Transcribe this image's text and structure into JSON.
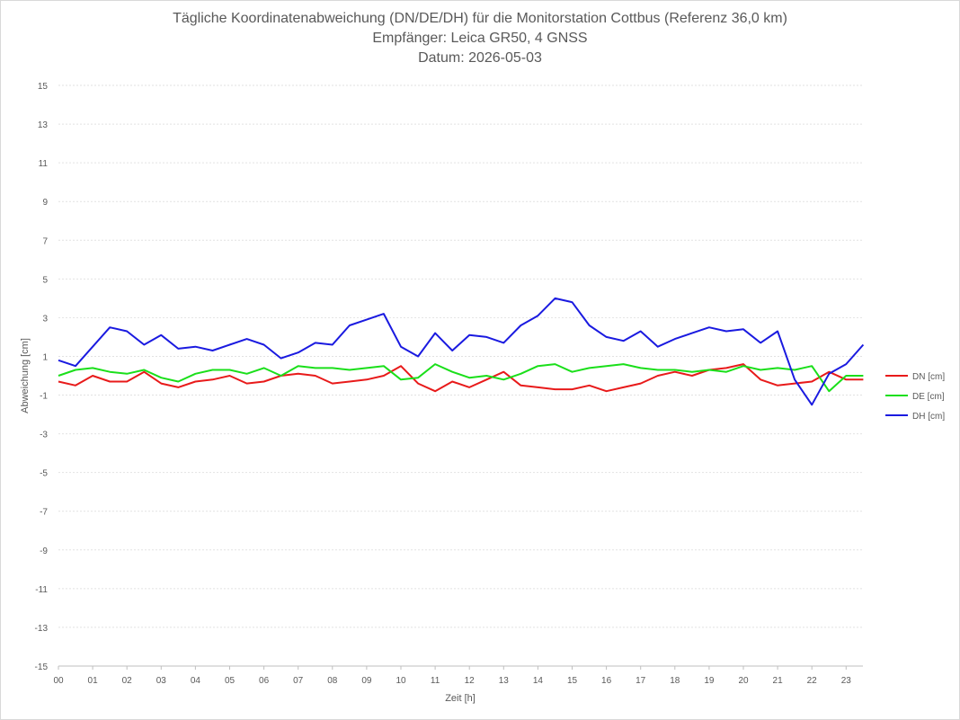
{
  "chart_data": {
    "type": "line",
    "title": "Tägliche Koordinatenabweichung (DN/DE/DH) für die Monitorstation Cottbus (Referenz 36,0 km)",
    "subtitle": "Empfänger: Leica GR50, 4 GNSS",
    "date_line": "Datum: 2026-05-03",
    "xlabel": "Zeit [h]",
    "ylabel": "Abweichung [cm]",
    "ylim": [
      -15,
      15
    ],
    "xlim": [
      0,
      24
    ],
    "grid": true,
    "legend_position": "right",
    "x_tick_labels": [
      "00",
      "01",
      "02",
      "03",
      "04",
      "05",
      "06",
      "07",
      "08",
      "09",
      "10",
      "11",
      "12",
      "13",
      "14",
      "15",
      "16",
      "17",
      "18",
      "19",
      "20",
      "21",
      "22",
      "23"
    ],
    "y_tick_labels": [
      "15",
      "13",
      "11",
      "9",
      "7",
      "5",
      "3",
      "1",
      "-1",
      "-3",
      "-5",
      "-7",
      "-9",
      "-11",
      "-13",
      "-15"
    ],
    "x": [
      0,
      0.5,
      1,
      1.5,
      2,
      2.5,
      3,
      3.5,
      4,
      4.5,
      5,
      5.5,
      6,
      6.5,
      7,
      7.5,
      8,
      8.5,
      9,
      9.5,
      10,
      10.5,
      11,
      11.5,
      12,
      12.5,
      13,
      13.5,
      14,
      14.5,
      15,
      15.5,
      16,
      16.5,
      17,
      17.5,
      18,
      18.5,
      19,
      19.5,
      20,
      20.5,
      21,
      21.5,
      22,
      22.5,
      23,
      23.5
    ],
    "series": [
      {
        "name": "DN [cm]",
        "color": "#e81a1a",
        "values": [
          -0.3,
          -0.5,
          0.0,
          -0.3,
          -0.3,
          0.2,
          -0.4,
          -0.6,
          -0.3,
          -0.2,
          0.0,
          -0.4,
          -0.3,
          0.0,
          0.1,
          0.0,
          -0.4,
          -0.3,
          -0.2,
          0.0,
          0.5,
          -0.4,
          -0.8,
          -0.3,
          -0.6,
          -0.2,
          0.2,
          -0.5,
          -0.6,
          -0.7,
          -0.7,
          -0.5,
          -0.8,
          -0.6,
          -0.4,
          0.0,
          0.2,
          0.0,
          0.3,
          0.4,
          0.6,
          -0.2,
          -0.5,
          -0.4,
          -0.3,
          0.2,
          -0.2,
          -0.2
        ]
      },
      {
        "name": "DE [cm]",
        "color": "#1adf1a",
        "values": [
          0.0,
          0.3,
          0.4,
          0.2,
          0.1,
          0.3,
          -0.1,
          -0.3,
          0.1,
          0.3,
          0.3,
          0.1,
          0.4,
          0.0,
          0.5,
          0.4,
          0.4,
          0.3,
          0.4,
          0.5,
          -0.2,
          -0.1,
          0.6,
          0.2,
          -0.1,
          0.0,
          -0.2,
          0.1,
          0.5,
          0.6,
          0.2,
          0.4,
          0.5,
          0.6,
          0.4,
          0.3,
          0.3,
          0.2,
          0.3,
          0.2,
          0.5,
          0.3,
          0.4,
          0.3,
          0.5,
          -0.8,
          0.0,
          0.0
        ]
      },
      {
        "name": "DH [cm]",
        "color": "#1a1ae0",
        "values": [
          0.8,
          0.5,
          1.5,
          2.5,
          2.3,
          1.6,
          2.1,
          1.4,
          1.5,
          1.3,
          1.6,
          1.9,
          1.6,
          0.9,
          1.2,
          1.7,
          1.6,
          2.6,
          2.9,
          3.2,
          1.5,
          1.0,
          2.2,
          1.3,
          2.1,
          2.0,
          1.7,
          2.6,
          3.1,
          4.0,
          3.8,
          2.6,
          2.0,
          1.8,
          2.3,
          1.5,
          1.9,
          2.2,
          2.5,
          2.3,
          2.4,
          1.7,
          2.3,
          -0.2,
          -1.5,
          0.1,
          0.6,
          1.6
        ]
      }
    ]
  }
}
